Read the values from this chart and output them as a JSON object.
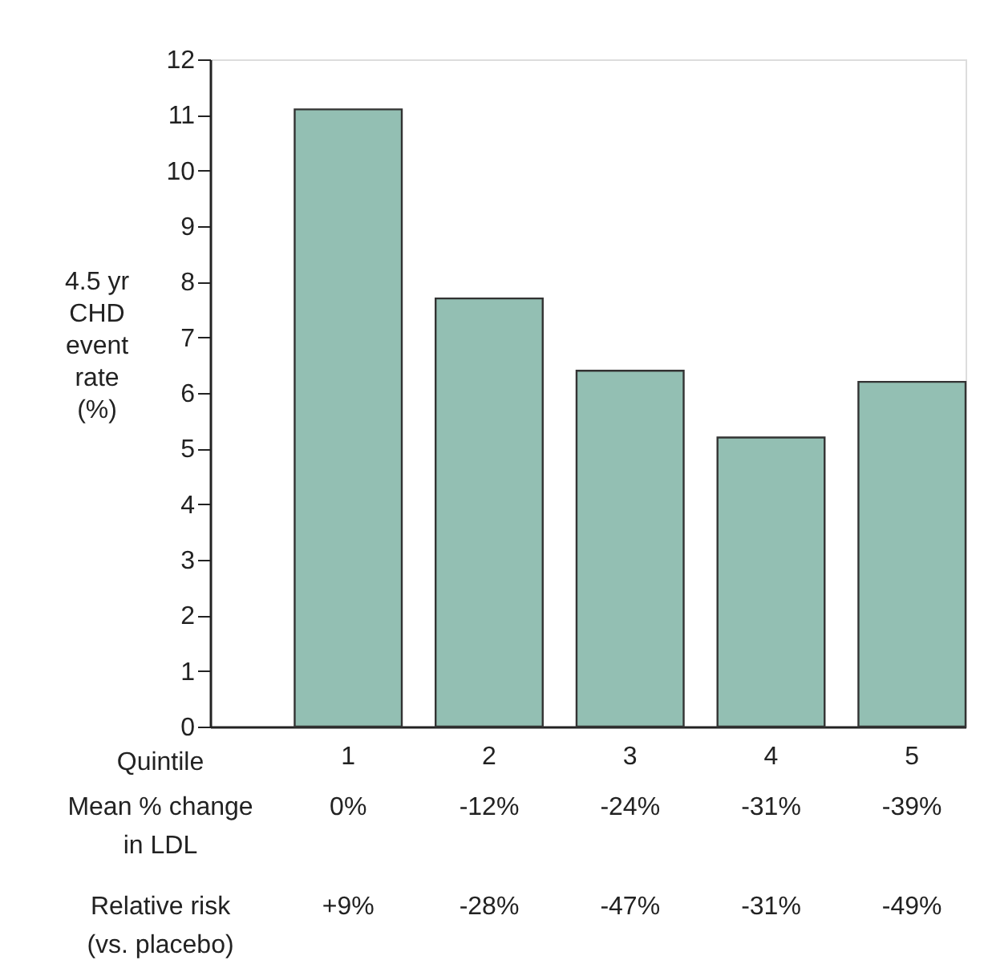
{
  "chart_data": {
    "type": "bar",
    "xlabel": "Quintile",
    "ylabel": "4.5 yr\nCHD\nevent\nrate\n(%)",
    "categories": [
      "1",
      "2",
      "3",
      "4",
      "5"
    ],
    "values": [
      11.1,
      7.7,
      6.4,
      5.2,
      6.2
    ],
    "color": "#93bfb3",
    "ylim": [
      0,
      12
    ],
    "yticks": [
      0,
      1,
      2,
      3,
      4,
      5,
      6,
      7,
      8,
      9,
      10,
      11,
      12
    ],
    "grid": false,
    "annotations": [
      "Mean % change\nin LDL",
      "0%",
      "-12%",
      "-24%",
      "-31%",
      "-39%",
      "Relative risk\n(vs. placebo)",
      "+9%",
      "-28%",
      "-47%",
      "-31%",
      "-49%"
    ]
  }
}
